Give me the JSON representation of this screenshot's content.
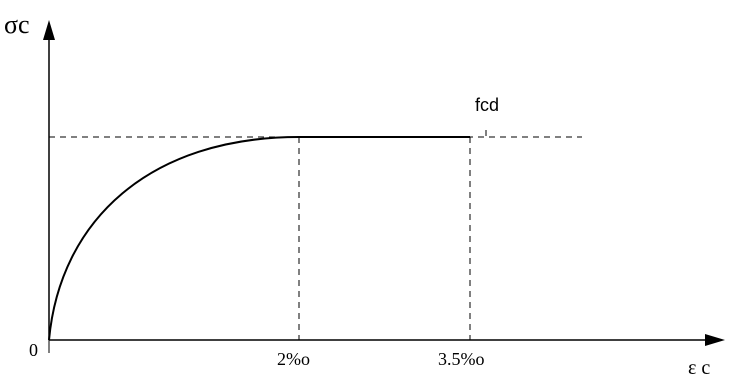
{
  "labels": {
    "y_axis": "σc",
    "x_axis": "ε c",
    "origin": "0",
    "fcd": "fcd",
    "tick_2": "2%o",
    "tick_3_5": "3.5%o"
  },
  "colors": {
    "stroke": "#000000",
    "background": "#ffffff"
  },
  "icons": {
    "y_axis_arrow": "arrow-up-icon",
    "x_axis_arrow": "arrow-right-icon"
  }
}
